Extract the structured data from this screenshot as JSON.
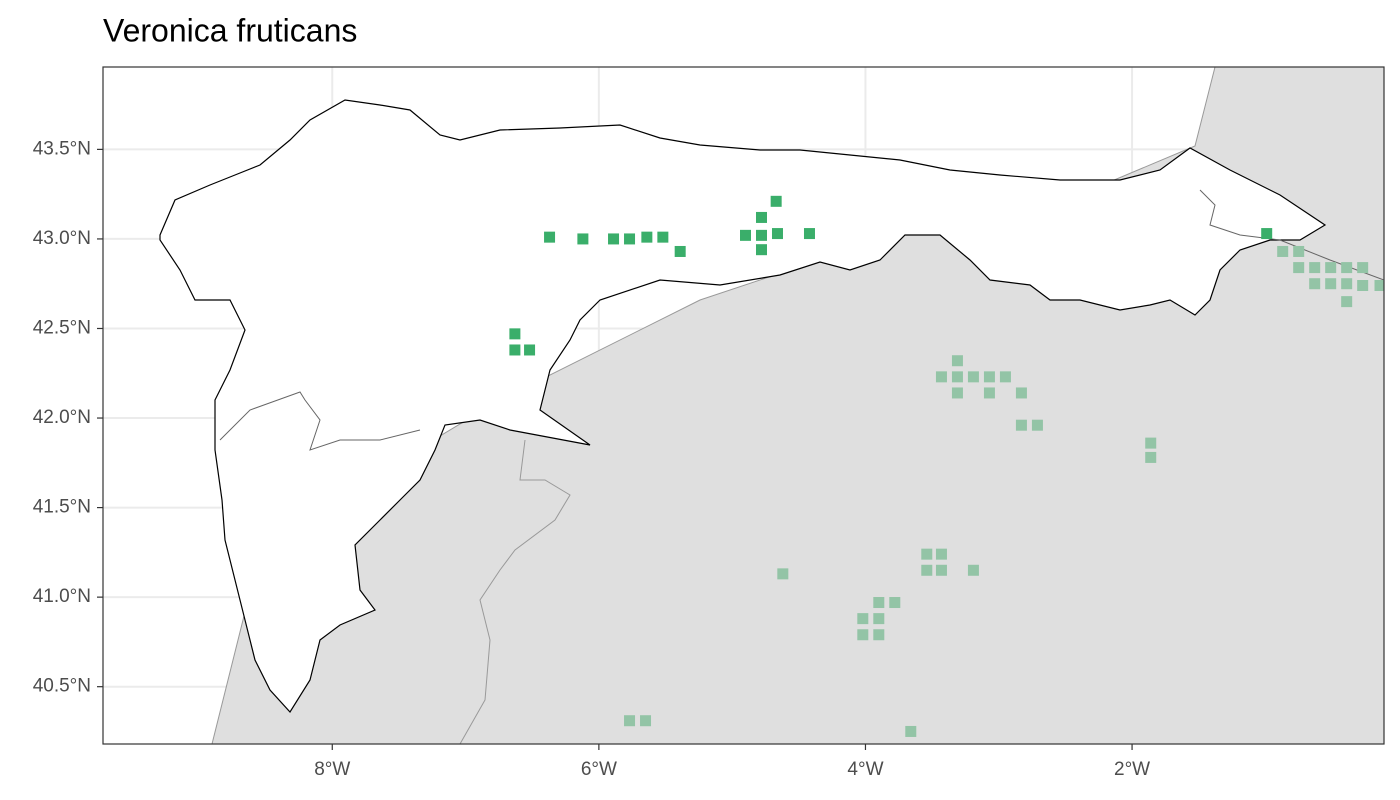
{
  "chart_data": {
    "type": "scatter",
    "title": "Veronica fruticans",
    "xlim": [
      -9.72,
      -0.11
    ],
    "ylim": [
      40.18,
      43.96
    ],
    "xticks": [
      {
        "value": -8,
        "label": "8°W"
      },
      {
        "value": -6,
        "label": "6°W"
      },
      {
        "value": -4,
        "label": "4°W"
      },
      {
        "value": -2,
        "label": "2°W"
      }
    ],
    "yticks": [
      {
        "value": 40.5,
        "label": "40.5°N"
      },
      {
        "value": 41,
        "label": "41.0°N"
      },
      {
        "value": 41.5,
        "label": "41.5°N"
      },
      {
        "value": 42,
        "label": "42.0°N"
      },
      {
        "value": 42.5,
        "label": "42.5°N"
      },
      {
        "value": 43,
        "label": "43.0°N"
      },
      {
        "value": 43.5,
        "label": "43.5°N"
      }
    ],
    "grid": true,
    "series": [
      {
        "color": "#3aae6a",
        "x": [
          -6.37,
          -6.12,
          -5.89,
          -5.77,
          -5.64,
          -5.52,
          -5.39,
          -4.9,
          -4.78,
          -4.78,
          -4.67,
          -4.66,
          -4.78,
          -4.42,
          -6.63,
          -6.63,
          -6.52,
          -0.99
        ],
        "y": [
          43.01,
          43.0,
          43.0,
          43.0,
          43.01,
          43.01,
          42.93,
          43.02,
          43.12,
          43.02,
          43.21,
          43.03,
          42.94,
          43.03,
          42.47,
          42.38,
          42.38,
          43.03
        ]
      },
      {
        "color": "#93c4a6",
        "x": [
          -0.87,
          -0.75,
          -0.75,
          -0.63,
          -0.63,
          -0.51,
          -0.51,
          -0.39,
          -0.39,
          -0.39,
          -0.27,
          -0.27,
          -0.14,
          -3.31,
          -3.43,
          -3.31,
          -3.19,
          -3.07,
          -2.95,
          -3.31,
          -3.07,
          -2.83,
          -2.83,
          -2.71,
          -1.86,
          -1.86,
          -3.54,
          -3.43,
          -3.54,
          -3.43,
          -3.19,
          -4.62,
          -3.9,
          -3.78,
          -4.02,
          -3.9,
          -4.02,
          -3.9,
          -5.77,
          -5.65,
          -3.66
        ],
        "y": [
          42.93,
          42.93,
          42.84,
          42.84,
          42.75,
          42.84,
          42.75,
          42.84,
          42.75,
          42.65,
          42.84,
          42.74,
          42.74,
          42.32,
          42.23,
          42.23,
          42.23,
          42.23,
          42.23,
          42.14,
          42.14,
          42.14,
          41.96,
          41.96,
          41.86,
          41.78,
          41.24,
          41.24,
          41.15,
          41.15,
          41.15,
          41.13,
          40.97,
          40.97,
          40.88,
          40.88,
          40.79,
          40.79,
          40.31,
          40.31,
          40.25
        ]
      }
    ]
  }
}
